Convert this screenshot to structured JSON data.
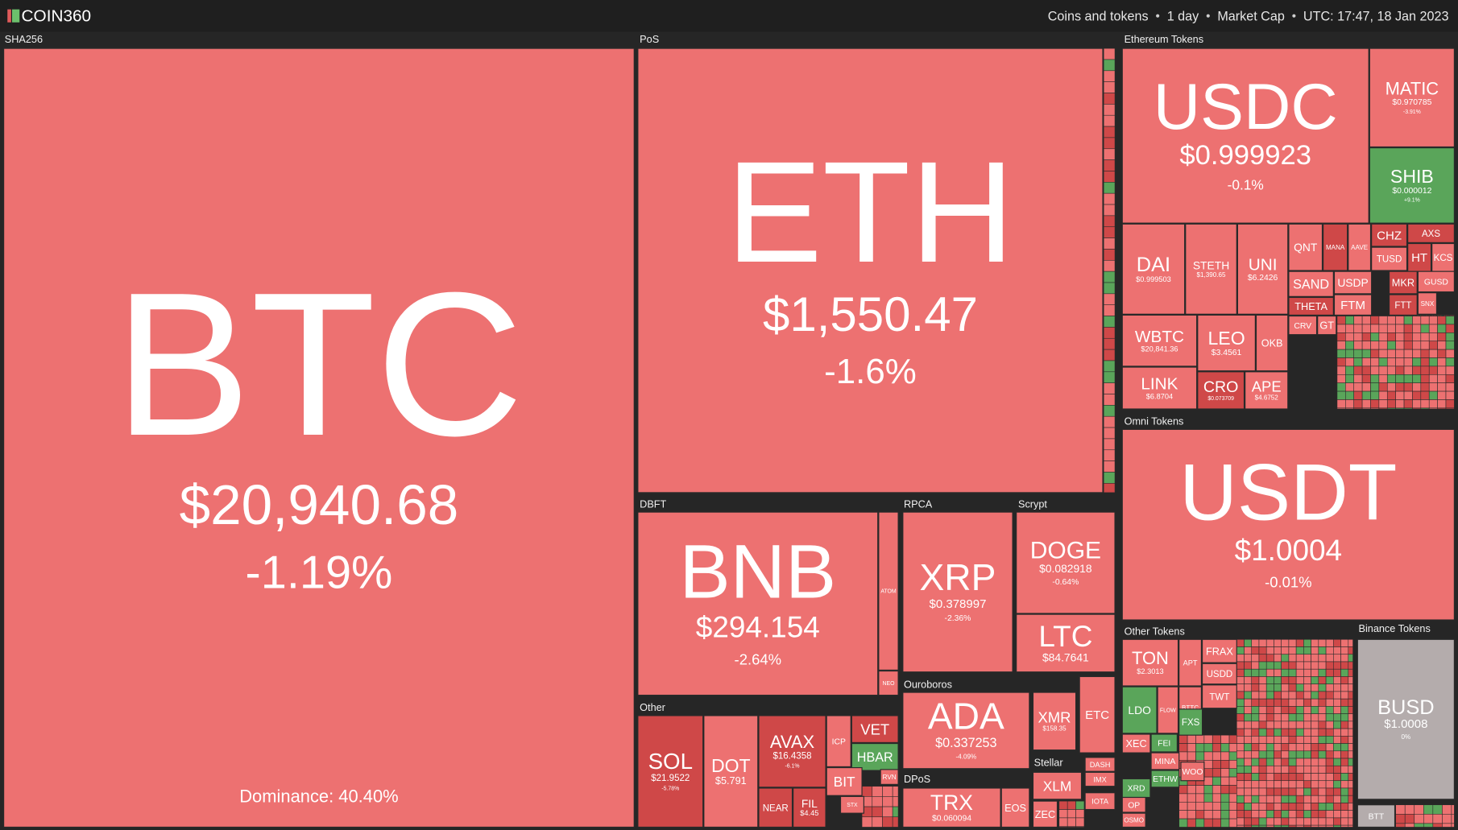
{
  "header": {
    "logo": "COIN360",
    "items": [
      "Coins and tokens",
      "1 day",
      "Market Cap",
      "UTC: 17:47, 18 Jan 2023"
    ]
  },
  "groups": [
    {
      "name": "SHA256",
      "tiles": [
        {
          "symbol": "BTC",
          "price": "$20,940.68",
          "change": "-1.19%",
          "dominance": "Dominance: 40.40%"
        }
      ]
    },
    {
      "name": "PoS",
      "tiles": [
        {
          "symbol": "ETH",
          "price": "$1,550.47",
          "change": "-1.6%"
        }
      ]
    },
    {
      "name": "DBFT",
      "tiles": [
        {
          "symbol": "BNB",
          "price": "$294.154",
          "change": "-2.64%"
        },
        {
          "symbol": "ATOM"
        },
        {
          "symbol": "NEO"
        }
      ]
    },
    {
      "name": "RPCA",
      "tiles": [
        {
          "symbol": "XRP",
          "price": "$0.378997",
          "change": "-2.36%"
        }
      ]
    },
    {
      "name": "Scrypt",
      "tiles": [
        {
          "symbol": "DOGE",
          "price": "$0.082918",
          "change": "-0.64%"
        },
        {
          "symbol": "LTC",
          "price": "$84.7641"
        }
      ]
    },
    {
      "name": "Other",
      "tiles": [
        {
          "symbol": "SOL",
          "price": "$21.9522",
          "change": "-5.78%"
        },
        {
          "symbol": "DOT",
          "price": "$5.791"
        },
        {
          "symbol": "AVAX",
          "price": "$16.4358",
          "change": "-6.1%"
        },
        {
          "symbol": "NEAR"
        },
        {
          "symbol": "FIL",
          "price": "$4.45"
        },
        {
          "symbol": "ICP"
        },
        {
          "symbol": "VET"
        },
        {
          "symbol": "HBAR"
        },
        {
          "symbol": "BIT"
        },
        {
          "symbol": "STX"
        },
        {
          "symbol": "RVN"
        }
      ]
    },
    {
      "name": "Ouroboros",
      "tiles": [
        {
          "symbol": "ADA",
          "price": "$0.337253",
          "change": "-4.09%"
        }
      ]
    },
    {
      "tiles": [
        {
          "symbol": "XMR",
          "price": "$158.35"
        },
        {
          "symbol": "ETC"
        },
        {
          "symbol": "DASH"
        },
        {
          "symbol": "IMX"
        },
        {
          "symbol": "IOTA"
        }
      ]
    },
    {
      "name": "DPoS",
      "tiles": [
        {
          "symbol": "TRX",
          "price": "$0.060094"
        },
        {
          "symbol": "EOS"
        }
      ]
    },
    {
      "name": "Stellar",
      "tiles": [
        {
          "symbol": "XLM"
        },
        {
          "symbol": "ZEC"
        }
      ]
    },
    {
      "name": "Ethereum Tokens",
      "tiles": [
        {
          "symbol": "USDC",
          "price": "$0.999923",
          "change": "-0.1%"
        },
        {
          "symbol": "MATIC",
          "price": "$0.970785",
          "change": "-3.91%"
        },
        {
          "symbol": "SHIB",
          "price": "$0.000012",
          "change": "+9.1%"
        },
        {
          "symbol": "DAI",
          "price": "$0.999503"
        },
        {
          "symbol": "STETH",
          "price": "$1,390.65"
        },
        {
          "symbol": "UNI",
          "price": "$6.2426"
        },
        {
          "symbol": "QNT"
        },
        {
          "symbol": "MANA"
        },
        {
          "symbol": "AAVE"
        },
        {
          "symbol": "CHZ"
        },
        {
          "symbol": "AXS"
        },
        {
          "symbol": "TUSD"
        },
        {
          "symbol": "HT"
        },
        {
          "symbol": "KCS"
        },
        {
          "symbol": "SAND"
        },
        {
          "symbol": "USDP"
        },
        {
          "symbol": "MKR"
        },
        {
          "symbol": "GUSD"
        },
        {
          "symbol": "THETA"
        },
        {
          "symbol": "FTM"
        },
        {
          "symbol": "FTT"
        },
        {
          "symbol": "SNX"
        },
        {
          "symbol": "WBTC",
          "price": "$20,841.36"
        },
        {
          "symbol": "LEO",
          "price": "$3.4561"
        },
        {
          "symbol": "OKB"
        },
        {
          "symbol": "CRV"
        },
        {
          "symbol": "GT"
        },
        {
          "symbol": "LINK",
          "price": "$6.8704"
        },
        {
          "symbol": "CRO",
          "price": "$0.073709"
        },
        {
          "symbol": "APE",
          "price": "$4.6752"
        }
      ]
    },
    {
      "name": "Omni Tokens",
      "tiles": [
        {
          "symbol": "USDT",
          "price": "$1.0004",
          "change": "-0.01%"
        }
      ]
    },
    {
      "name": "Other Tokens",
      "tiles": [
        {
          "symbol": "TON",
          "price": "$2.3013"
        },
        {
          "symbol": "APT"
        },
        {
          "symbol": "FRAX"
        },
        {
          "symbol": "USDD"
        },
        {
          "symbol": "TWT"
        },
        {
          "symbol": "BTTC"
        },
        {
          "symbol": "LDO"
        },
        {
          "symbol": "FLOW"
        },
        {
          "symbol": "FXS"
        },
        {
          "symbol": "XEC"
        },
        {
          "symbol": "FEI"
        },
        {
          "symbol": "MINA"
        },
        {
          "symbol": "ETHW"
        },
        {
          "symbol": "WOO"
        },
        {
          "symbol": "XRD"
        },
        {
          "symbol": "OP"
        },
        {
          "symbol": "OSMO"
        }
      ]
    },
    {
      "name": "Binance Tokens",
      "tiles": [
        {
          "symbol": "BUSD",
          "price": "$1.0008",
          "change": "0%"
        },
        {
          "symbol": "BTT"
        }
      ]
    }
  ]
}
